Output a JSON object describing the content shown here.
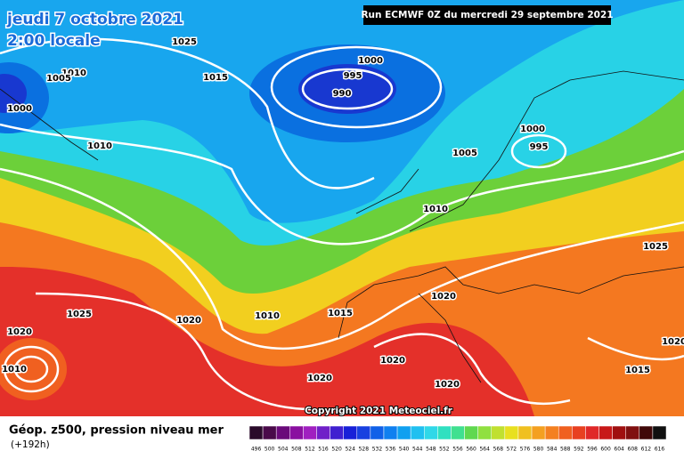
{
  "header": {
    "date": "jeudi 7 octobre 2021",
    "time": "2:00 locale",
    "run": "Run ECMWF 0Z du mercredi 29 septembre 2021"
  },
  "isobar_labels": [
    "1025",
    "1010",
    "1005",
    "1015",
    "1000",
    "1000",
    "995",
    "990",
    "1010",
    "1000",
    "995",
    "1005",
    "1010",
    "1025",
    "1020",
    "1025",
    "1020",
    "1010",
    "1015",
    "1020",
    "1010",
    "1020",
    "1020",
    "1020",
    "1015",
    "1020"
  ],
  "copyright": "Copyright 2021 Meteociel.fr",
  "footer": {
    "title": "Géop. z500, pression niveau mer",
    "subtitle": "(+192h)"
  },
  "scale": {
    "labels": [
      "496",
      "500",
      "504",
      "508",
      "512",
      "516",
      "520",
      "524",
      "528",
      "532",
      "536",
      "540",
      "544",
      "548",
      "552",
      "556",
      "560",
      "564",
      "568",
      "572",
      "576",
      "580",
      "584",
      "588",
      "592",
      "596",
      "600",
      "604",
      "608",
      "612",
      "616"
    ],
    "colors": [
      "#2a0a2a",
      "#4a0a4a",
      "#6a0a7a",
      "#8a10a0",
      "#a020c0",
      "#7020c8",
      "#4020d0",
      "#1820d8",
      "#1840e0",
      "#1060e8",
      "#1080f0",
      "#10a0f0",
      "#20c0f0",
      "#30d8e8",
      "#30e0c0",
      "#40e090",
      "#60d850",
      "#90e040",
      "#c0e030",
      "#e8e020",
      "#f0c020",
      "#f4a020",
      "#f48020",
      "#f06020",
      "#e84020",
      "#e02828",
      "#c81818",
      "#a01010",
      "#801010",
      "#400808",
      "#101010"
    ]
  }
}
